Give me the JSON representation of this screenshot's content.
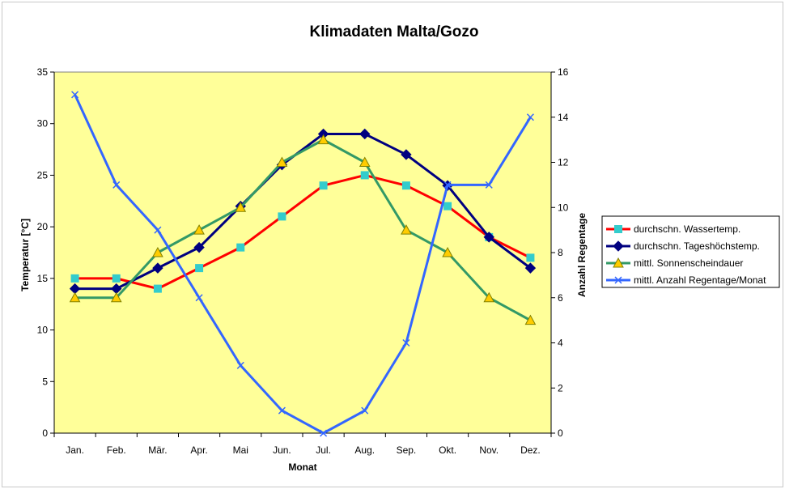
{
  "chart_data": {
    "type": "line",
    "title": "Klimadaten Malta/Gozo",
    "xlabel": "Monat",
    "ylabel": "Temperatur [°C]",
    "y2label": "Anzahl Regentage",
    "categories": [
      "Jan.",
      "Feb.",
      "Mär.",
      "Apr.",
      "Mai",
      "Jun.",
      "Jul.",
      "Aug.",
      "Sep.",
      "Okt.",
      "Nov.",
      "Dez."
    ],
    "ylim": [
      0,
      35
    ],
    "yticks": [
      "0",
      "5",
      "10",
      "15",
      "20",
      "25",
      "30",
      "35"
    ],
    "y2lim": [
      0,
      16
    ],
    "y2ticks": [
      "0",
      "2",
      "4",
      "6",
      "8",
      "10",
      "12",
      "14",
      "16"
    ],
    "grid": false,
    "plot_background": "#ffff99",
    "legend_position": "right",
    "series": [
      {
        "name": "durchschn. Wassertemp.",
        "axis": "left",
        "line_color": "#ff0000",
        "marker": "square",
        "marker_color": "#33cccc",
        "values": [
          15,
          15,
          14,
          16,
          18,
          21,
          24,
          25,
          24,
          22,
          19,
          17
        ]
      },
      {
        "name": "durchschn. Tageshöchstemp.",
        "axis": "left",
        "line_color": "#000080",
        "marker": "diamond",
        "marker_color": "#000080",
        "values": [
          14,
          14,
          16,
          18,
          22,
          26,
          29,
          29,
          27,
          24,
          19,
          16
        ]
      },
      {
        "name": "mittl. Sonnenscheindauer",
        "axis": "right",
        "line_color": "#339966",
        "marker": "triangle",
        "marker_color": "#ffcc00",
        "values": [
          6,
          6,
          8,
          9,
          10,
          12,
          13,
          12,
          9,
          8,
          6,
          5
        ]
      },
      {
        "name": "mittl. Anzahl Regentage/Monat",
        "axis": "right",
        "line_color": "#3366ff",
        "marker": "x",
        "marker_color": "#3366ff",
        "values": [
          15,
          11,
          9,
          6,
          3,
          1,
          0,
          1,
          4,
          11,
          11,
          14
        ]
      }
    ]
  }
}
